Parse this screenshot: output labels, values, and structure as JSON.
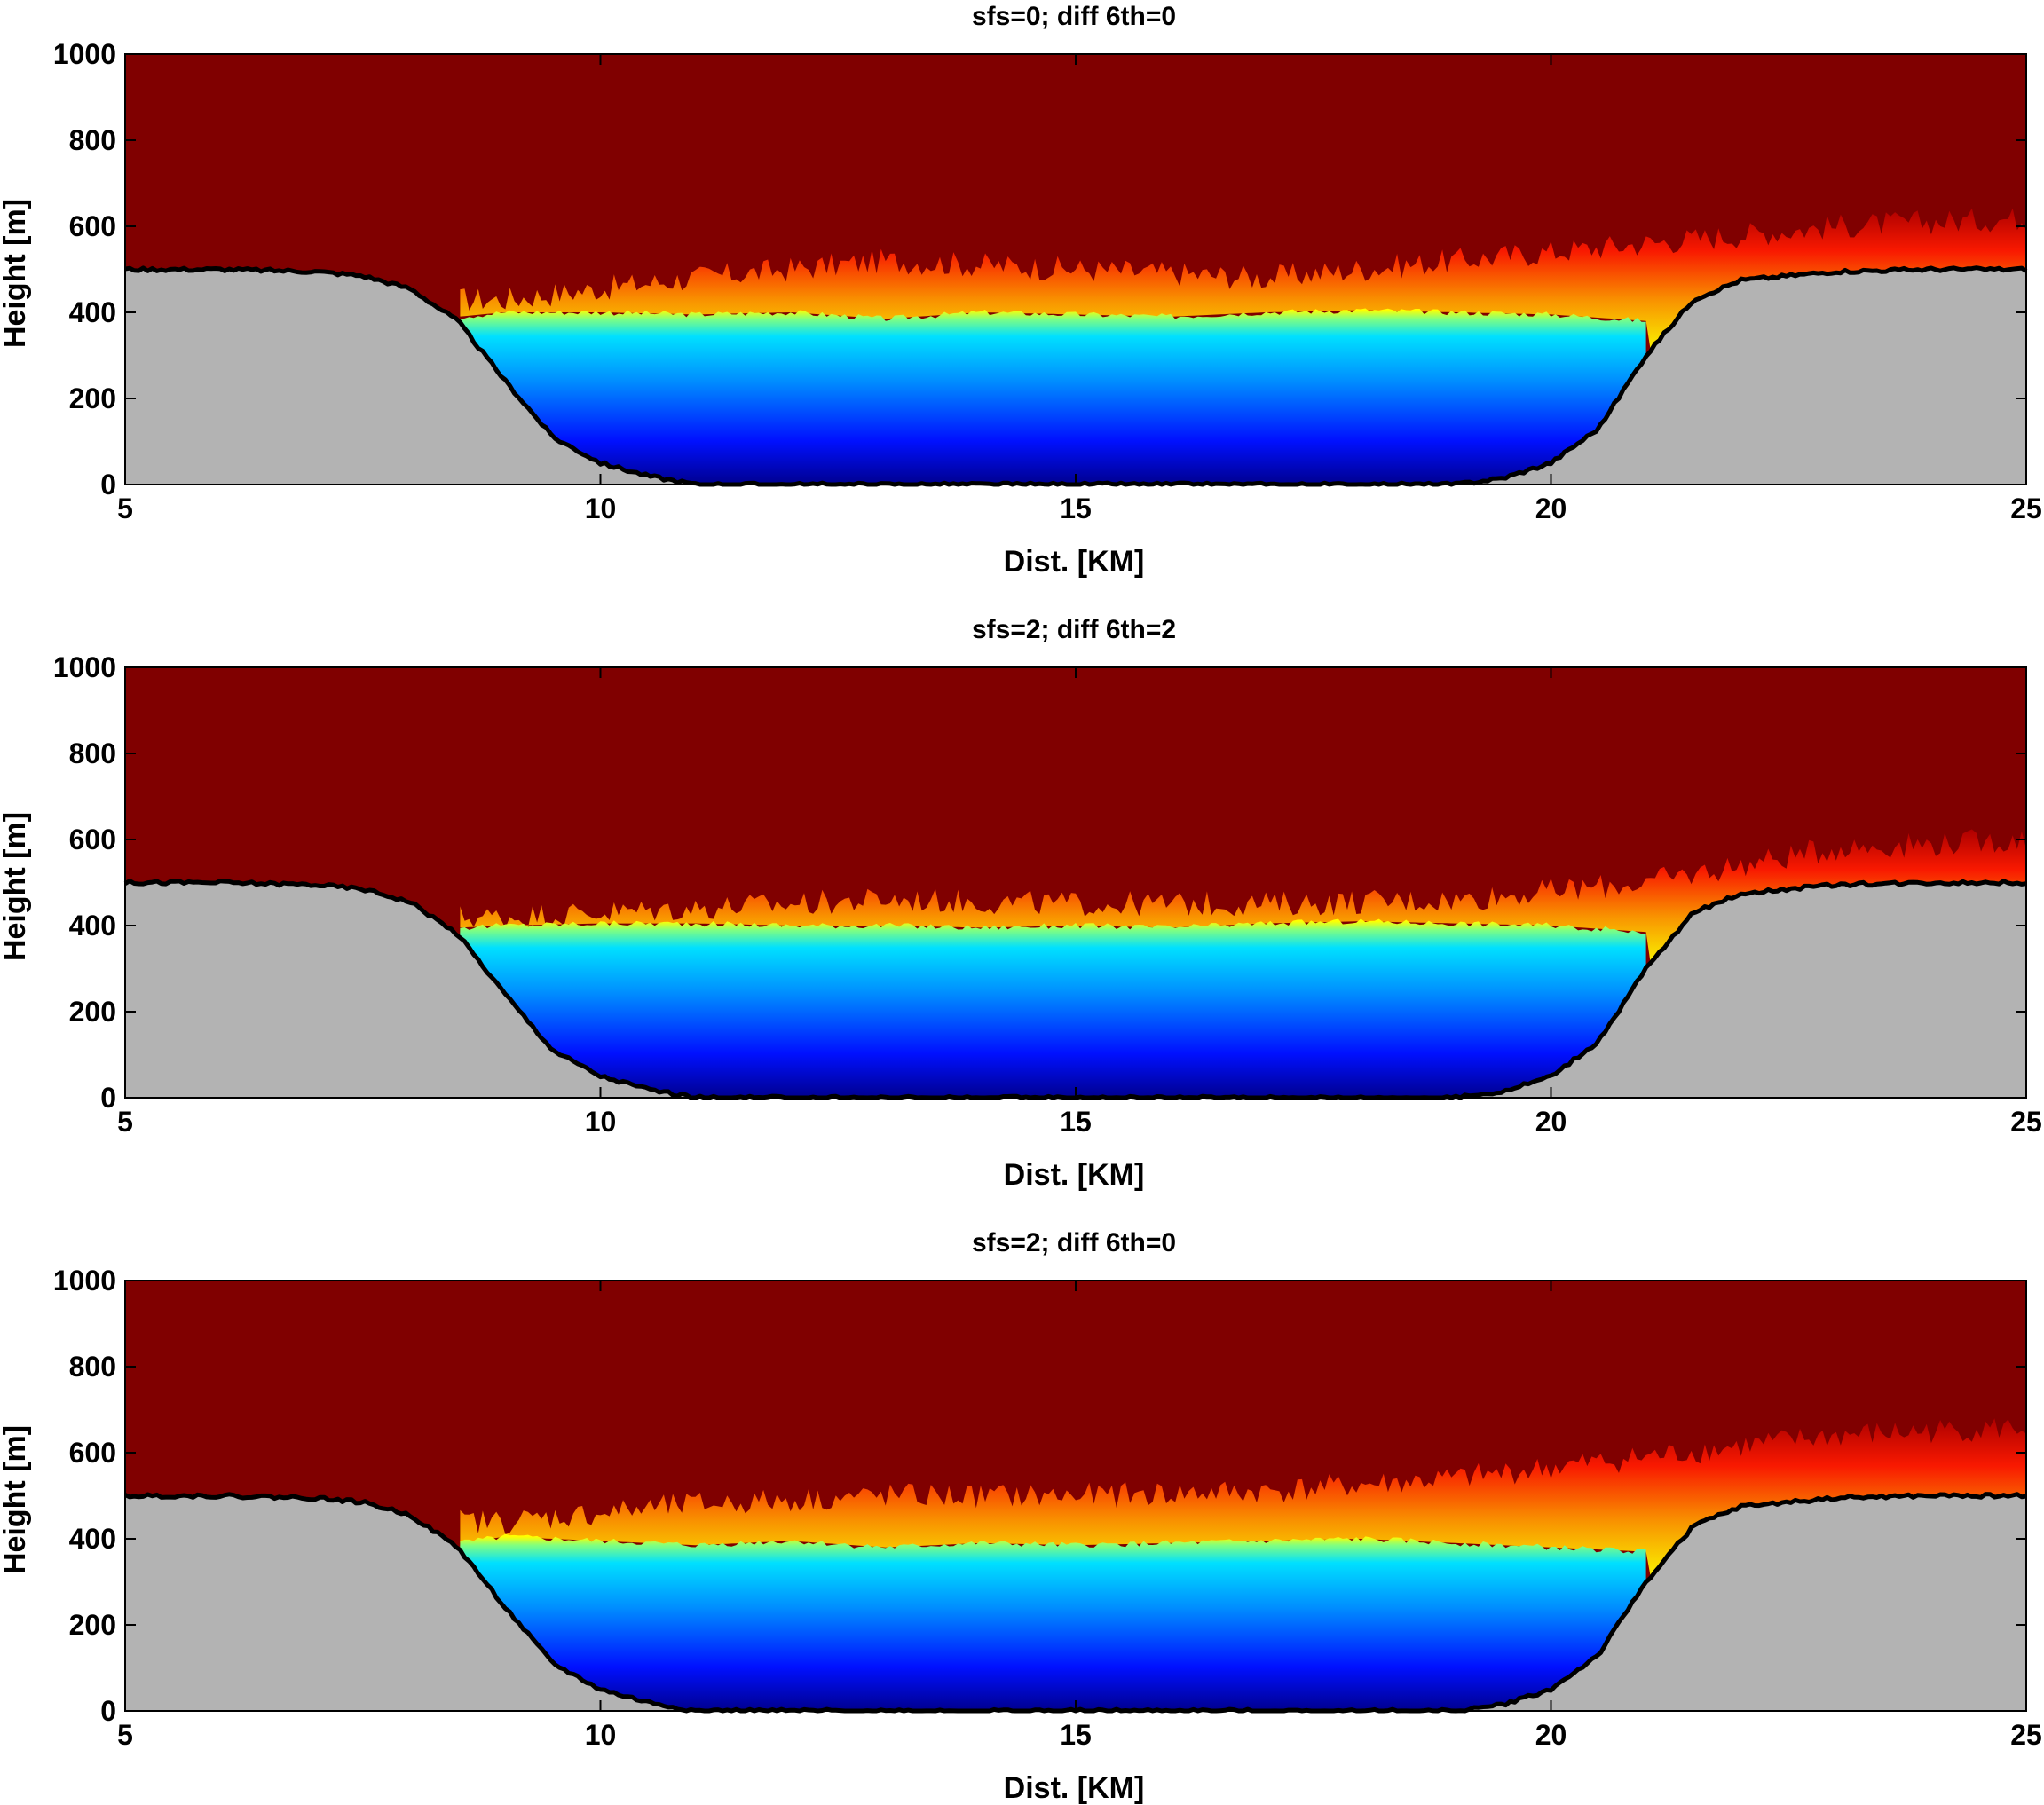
{
  "chart_data": [
    {
      "type": "heatmap",
      "title": "sfs=0; diff 6th=0",
      "xlabel": "Dist. [KM]",
      "ylabel": "Height [m]",
      "xlim": [
        5,
        25
      ],
      "ylim": [
        0,
        1000
      ],
      "xticks": [
        5,
        10,
        15,
        20,
        25
      ],
      "yticks": [
        0,
        200,
        400,
        600,
        800,
        1000
      ],
      "colormap": "jet",
      "terrain_color": "#b3b3b3",
      "terrain_profile": {
        "x": [
          5,
          6,
          7,
          7.5,
          8,
          8.5,
          9,
          9.5,
          10,
          10.5,
          11,
          19,
          19.5,
          20,
          20.5,
          21,
          21.5,
          22,
          23,
          24,
          25
        ],
        "height": [
          500,
          500,
          495,
          485,
          455,
          380,
          240,
          110,
          50,
          20,
          0,
          0,
          15,
          50,
          130,
          300,
          430,
          475,
          495,
          500,
          500
        ]
      },
      "cold_pool_top_height": {
        "x": [
          8.5,
          9,
          10,
          11,
          12,
          13,
          14,
          15,
          16,
          17,
          18,
          19,
          20,
          21
        ],
        "height": [
          390,
          400,
          400,
          395,
          400,
          385,
          400,
          395,
          390,
          400,
          405,
          400,
          395,
          380
        ]
      },
      "warm_layer_top_height": {
        "x": [
          9,
          11,
          13,
          15,
          17,
          19,
          21,
          23,
          25
        ],
        "height": [
          430,
          480,
          520,
          500,
          480,
          520,
          560,
          600,
          620
        ]
      }
    },
    {
      "type": "heatmap",
      "title": "sfs=2; diff 6th=2",
      "xlabel": "Dist. [KM]",
      "ylabel": "Height [m]",
      "xlim": [
        5,
        25
      ],
      "ylim": [
        0,
        1000
      ],
      "xticks": [
        5,
        10,
        15,
        20,
        25
      ],
      "yticks": [
        0,
        200,
        400,
        600,
        800,
        1000
      ],
      "colormap": "jet",
      "terrain_color": "#b3b3b3",
      "terrain_profile": {
        "x": [
          5,
          6,
          7,
          7.5,
          8,
          8.5,
          9,
          9.5,
          10,
          10.5,
          11,
          19,
          19.5,
          20,
          20.5,
          21,
          21.5,
          22,
          23,
          24,
          25
        ],
        "height": [
          500,
          500,
          495,
          485,
          455,
          380,
          240,
          110,
          50,
          20,
          0,
          0,
          15,
          50,
          130,
          300,
          430,
          475,
          495,
          500,
          500
        ]
      },
      "cold_pool_top_height": {
        "x": [
          8.5,
          9,
          10,
          11,
          12,
          13,
          14,
          15,
          16,
          17,
          18,
          19,
          20,
          21
        ],
        "height": [
          395,
          400,
          405,
          405,
          400,
          400,
          395,
          400,
          395,
          405,
          410,
          405,
          400,
          385
        ]
      },
      "warm_layer_top_height": {
        "x": [
          9,
          11,
          13,
          15,
          17,
          19,
          21,
          23,
          25
        ],
        "height": [
          420,
          440,
          460,
          450,
          450,
          460,
          500,
          580,
          600
        ]
      }
    },
    {
      "type": "heatmap",
      "title": "sfs=2; diff 6th=0",
      "xlabel": "Dist. [KM]",
      "ylabel": "Height [m]",
      "xlim": [
        5,
        25
      ],
      "ylim": [
        0,
        1000
      ],
      "xticks": [
        5,
        10,
        15,
        20,
        25
      ],
      "yticks": [
        0,
        200,
        400,
        600,
        800,
        1000
      ],
      "colormap": "jet",
      "terrain_color": "#b3b3b3",
      "terrain_profile": {
        "x": [
          5,
          6,
          7,
          7.5,
          8,
          8.5,
          9,
          9.5,
          10,
          10.5,
          11,
          19,
          19.5,
          20,
          20.5,
          21,
          21.5,
          22,
          23,
          24,
          25
        ],
        "height": [
          500,
          500,
          495,
          485,
          455,
          380,
          240,
          110,
          50,
          20,
          0,
          0,
          15,
          50,
          130,
          300,
          430,
          475,
          495,
          500,
          500
        ]
      },
      "cold_pool_top_height": {
        "x": [
          8.5,
          9,
          10,
          11,
          12,
          13,
          14,
          15,
          16,
          17,
          18,
          19,
          20,
          21
        ],
        "height": [
          390,
          405,
          395,
          385,
          395,
          380,
          390,
          385,
          390,
          395,
          400,
          390,
          380,
          370
        ]
      },
      "warm_layer_top_height": {
        "x": [
          9,
          11,
          13,
          15,
          17,
          19,
          21,
          23,
          25
        ],
        "height": [
          440,
          480,
          500,
          500,
          510,
          540,
          590,
          640,
          660
        ]
      }
    }
  ]
}
